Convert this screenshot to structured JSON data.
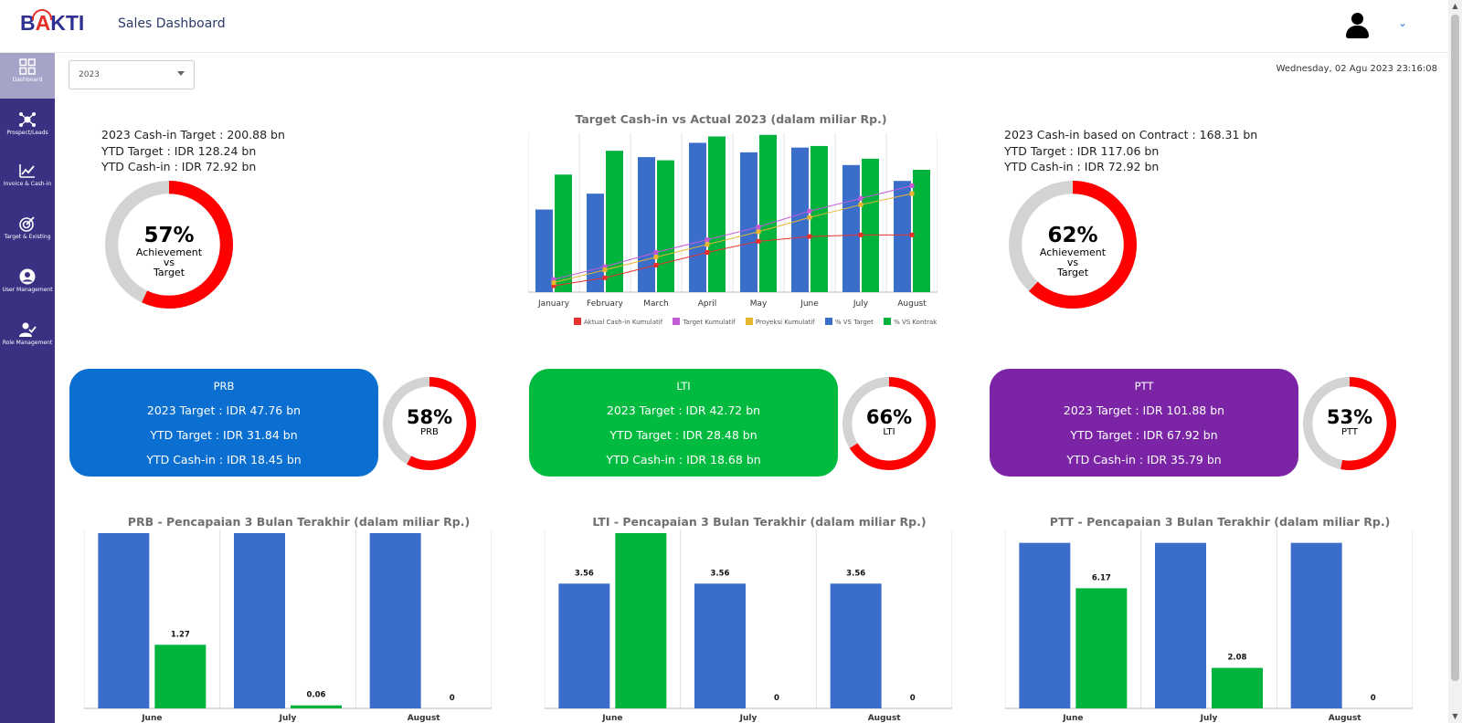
{
  "header": {
    "logo_prefix": "B",
    "logo_accent": "A",
    "logo_suffix": "KTI",
    "app_title": "Sales Dashboard"
  },
  "sidebar": {
    "items": [
      {
        "label": "Dashboard",
        "icon": "grid-icon",
        "active": true
      },
      {
        "label": "Prospect/Leads",
        "icon": "network-icon",
        "active": false
      },
      {
        "label": "Invoice & Cash-in",
        "icon": "chart-up-icon",
        "active": false
      },
      {
        "label": "Target & Existing",
        "icon": "target-icon",
        "active": false
      },
      {
        "label": "User Management",
        "icon": "user-circle-icon",
        "active": false
      },
      {
        "label": "Role Management",
        "icon": "user-check-icon",
        "active": false
      }
    ]
  },
  "filter": {
    "year": "2023"
  },
  "datetime": "Wednesday, 02 Agu 2023 23:16:08",
  "left_kpi": {
    "lines": [
      "2023 Cash-in Target : 200.88 bn",
      "YTD Target : IDR 128.24 bn",
      "YTD Cash-in : IDR 72.92 bn"
    ],
    "pct": "57%",
    "pct_value": 57,
    "sub": [
      "Achievement",
      "vs",
      "Target"
    ]
  },
  "right_kpi": {
    "lines": [
      "2023 Cash-in based on Contract : 168.31 bn",
      "YTD Target : IDR 117.06 bn",
      "YTD Cash-in : IDR 72.92 bn"
    ],
    "pct": "62%",
    "pct_value": 62,
    "sub": [
      "Achievement",
      "vs",
      "Target"
    ]
  },
  "colors": {
    "blue": "#3b6ecb",
    "green": "#00b33c",
    "red": "#ff0000",
    "grey": "#d3d3d3",
    "sidebar": "#3a3183",
    "prb": "#0a6fd0",
    "lti": "#00bb3f",
    "ptt": "#7b24a6"
  },
  "cards": [
    {
      "id": "prb",
      "title": "PRB",
      "lines": [
        "2023 Target : IDR 47.76 bn",
        "YTD Target : IDR 31.84 bn",
        "YTD Cash-in : IDR 18.45 bn"
      ],
      "pct": "58%",
      "pct_value": 58,
      "sub": "PRB"
    },
    {
      "id": "lti",
      "title": "LTI",
      "lines": [
        "2023 Target : IDR 42.72 bn",
        "YTD Target : IDR 28.48 bn",
        "YTD Cash-in : IDR 18.68 bn"
      ],
      "pct": "66%",
      "pct_value": 66,
      "sub": "LTI"
    },
    {
      "id": "ptt",
      "title": "PTT",
      "lines": [
        "2023 Target : IDR 101.88 bn",
        "YTD Target : IDR 67.92 bn",
        "YTD Cash-in : IDR 35.79 bn"
      ],
      "pct": "53%",
      "pct_value": 53,
      "sub": "PTT"
    }
  ],
  "chart_data": [
    {
      "type": "bar",
      "title": "Target Cash-in vs Actual 2023 (dalam miliar Rp.)",
      "categories": [
        "January",
        "February",
        "March",
        "April",
        "May",
        "June",
        "July",
        "August"
      ],
      "ylim": [
        0,
        100
      ],
      "series": [
        {
          "name": "% VS Target",
          "kind": "bar",
          "values": [
            52,
            62,
            85,
            94,
            88,
            91,
            80,
            70
          ]
        },
        {
          "name": "% VS Kontrak",
          "kind": "bar",
          "values": [
            74,
            89,
            83,
            98,
            99,
            92,
            84,
            77
          ]
        },
        {
          "name": "Aktual Cash-in Kumulatif",
          "kind": "line",
          "values": [
            4,
            9,
            17,
            25,
            32,
            35,
            36,
            36
          ]
        },
        {
          "name": "Target Kumulatif",
          "kind": "line",
          "values": [
            8,
            16,
            25,
            33,
            41,
            51,
            59,
            67
          ]
        },
        {
          "name": "Proyeksi Kumulatif",
          "kind": "line",
          "values": [
            6,
            14,
            22,
            30,
            38,
            47,
            55,
            62
          ]
        }
      ],
      "legend_position": "bottom",
      "grid": true
    },
    {
      "type": "bar",
      "title": "PRB - Pencapaian 3 Bulan Terakhir (dalam miliar Rp.)",
      "categories": [
        "June",
        "July",
        "August"
      ],
      "ylim": [
        0,
        3.5
      ],
      "series": [
        {
          "kind": "bar",
          "values": [
            3.5,
            3.5,
            3.5
          ]
        },
        {
          "kind": "bar",
          "values": [
            1.27,
            0.06,
            0
          ],
          "labels": [
            "1.27",
            "0.06",
            "0"
          ]
        }
      ]
    },
    {
      "type": "bar",
      "title": "LTI - Pencapaian 3 Bulan Terakhir (dalam miliar Rp.)",
      "categories": [
        "June",
        "July",
        "August"
      ],
      "ylim": [
        0,
        5.0
      ],
      "series": [
        {
          "kind": "bar",
          "values": [
            3.56,
            3.56,
            3.56
          ],
          "labels": [
            "3.56",
            "3.56",
            "3.56"
          ]
        },
        {
          "kind": "bar",
          "values": [
            5.0,
            0,
            0
          ],
          "labels": [
            "",
            "0",
            "0"
          ]
        }
      ]
    },
    {
      "type": "bar",
      "title": "PTT - Pencapaian 3 Bulan Terakhir (dalam miliar Rp.)",
      "categories": [
        "June",
        "July",
        "August"
      ],
      "ylim": [
        0,
        9.0
      ],
      "series": [
        {
          "kind": "bar",
          "values": [
            8.5,
            8.5,
            8.5
          ]
        },
        {
          "kind": "bar",
          "values": [
            6.17,
            2.08,
            0
          ],
          "labels": [
            "6.17",
            "2.08",
            "0"
          ]
        }
      ]
    }
  ]
}
